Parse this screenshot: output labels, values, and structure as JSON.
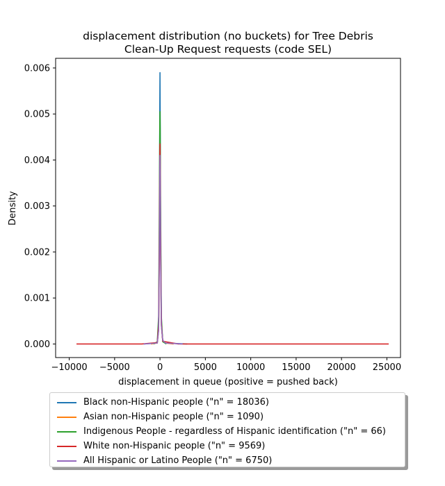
{
  "chart_data": {
    "type": "line",
    "title_line1": "displacement distribution (no buckets)  for Tree Debris",
    "title_line2": "Clean-Up Request requests (code SEL)",
    "xlabel": "displacement in queue (positive = pushed back)",
    "ylabel": "Density",
    "xlim": [
      -11500,
      26500
    ],
    "ylim": [
      -0.000295,
      0.00621
    ],
    "x_ticks": [
      -10000,
      -5000,
      0,
      5000,
      10000,
      15000,
      20000,
      25000
    ],
    "x_tick_labels": [
      "−10000",
      "−5000",
      "0",
      "5000",
      "10000",
      "15000",
      "20000",
      "25000"
    ],
    "y_ticks": [
      0,
      0.001,
      0.002,
      0.003,
      0.004,
      0.005,
      0.006
    ],
    "y_tick_labels": [
      "0.000",
      "0.001",
      "0.002",
      "0.003",
      "0.004",
      "0.005",
      "0.006"
    ],
    "grid": false,
    "legend_position": "below",
    "series": [
      {
        "name": "Black non-Hispanic people (\"n\" = 18036)",
        "color": "#1f77b4",
        "x": [
          -1800,
          -300,
          -150,
          -60,
          -20,
          0,
          20,
          60,
          150,
          300,
          600,
          3000
        ],
        "y": [
          0,
          2e-05,
          0.00035,
          0.0025,
          0.0052,
          0.0059,
          0.005,
          0.0024,
          0.00045,
          8e-05,
          2e-05,
          0
        ]
      },
      {
        "name": "Asian non-Hispanic people (\"n\" = 1090)",
        "color": "#ff7f0e",
        "x": [
          -1000,
          -300,
          -150,
          -60,
          -20,
          0,
          20,
          60,
          150,
          300,
          600,
          1500
        ],
        "y": [
          0,
          2e-05,
          0.0003,
          0.0021,
          0.0038,
          0.0041,
          0.0036,
          0.002,
          0.0004,
          8e-05,
          2e-05,
          0
        ]
      },
      {
        "name": "Indigenous People - regardless of Hispanic identification (\"n\" = 66)",
        "color": "#2ca02c",
        "x": [
          -700,
          -300,
          -150,
          -60,
          -20,
          0,
          20,
          60,
          150,
          300,
          700
        ],
        "y": [
          0,
          5e-05,
          0.0006,
          0.0035,
          0.0048,
          0.00505,
          0.0047,
          0.0032,
          0.0006,
          5e-05,
          0
        ]
      },
      {
        "name": "White non-Hispanic people (\"n\" = 9569)",
        "color": "#d62728",
        "x": [
          -9200,
          -2000,
          -300,
          -150,
          -60,
          -20,
          0,
          20,
          60,
          150,
          300,
          2000,
          25200
        ],
        "y": [
          0,
          0,
          3e-05,
          0.0004,
          0.0026,
          0.0041,
          0.00435,
          0.004,
          0.0025,
          0.00045,
          6e-05,
          0,
          0
        ]
      },
      {
        "name": "All Hispanic or Latino People (\"n\" = 6750)",
        "color": "#9467bd",
        "x": [
          -1800,
          -300,
          -150,
          -60,
          -20,
          0,
          20,
          60,
          150,
          300,
          600,
          2500
        ],
        "y": [
          0,
          2e-05,
          0.0003,
          0.0022,
          0.0038,
          0.0041,
          0.0037,
          0.0021,
          0.0004,
          8e-05,
          2e-05,
          0
        ]
      }
    ]
  }
}
